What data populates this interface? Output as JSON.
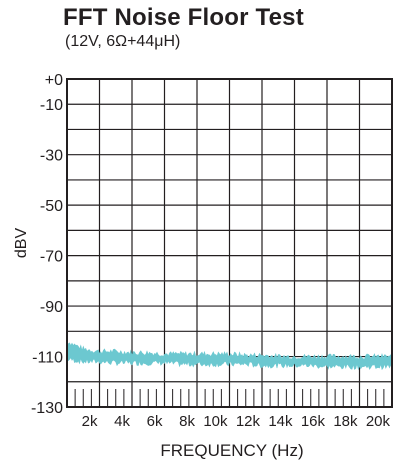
{
  "chart_data": {
    "type": "line",
    "title": "FFT Noise Floor Test",
    "subtitle": "(12V, 6Ω+44μH)",
    "xlabel": "FREQUENCY (Hz)",
    "ylabel": "dBV",
    "xlim": [
      0,
      20000
    ],
    "ylim": [
      -130,
      0
    ],
    "x_ticks": [
      2000,
      4000,
      6000,
      8000,
      10000,
      12000,
      14000,
      16000,
      18000,
      20000
    ],
    "x_tick_labels": [
      "2k",
      "4k",
      "6k",
      "8k",
      "10k",
      "12k",
      "14k",
      "16k",
      "18k",
      "20k"
    ],
    "y_ticks": [
      0,
      -10,
      -30,
      -50,
      -70,
      -90,
      -110,
      -130
    ],
    "y_tick_labels": [
      "+0",
      "-10",
      "-30",
      "-50",
      "-70",
      "-90",
      "-110",
      "-130"
    ],
    "grid": true,
    "series": [
      {
        "color": "#6cc8d0",
        "x": [
          0,
          1000,
          2000,
          3000,
          4000,
          5000,
          6000,
          7000,
          8000,
          9000,
          10000,
          11000,
          12000,
          13000,
          14000,
          15000,
          16000,
          17000,
          18000,
          19000,
          20000
        ],
        "y_upper": [
          -104,
          -107,
          -108,
          -108,
          -108.5,
          -108.5,
          -109,
          -109,
          -109,
          -109,
          -109,
          -109.5,
          -109.5,
          -110,
          -110,
          -110,
          -110,
          -110,
          -110,
          -110,
          -110
        ],
        "y_lower": [
          -111,
          -112,
          -112,
          -112.5,
          -112.5,
          -112.5,
          -112.5,
          -113,
          -113,
          -113,
          -113,
          -113,
          -113.5,
          -113.5,
          -113.5,
          -113.5,
          -114,
          -114,
          -114,
          -114,
          -114
        ]
      }
    ]
  }
}
